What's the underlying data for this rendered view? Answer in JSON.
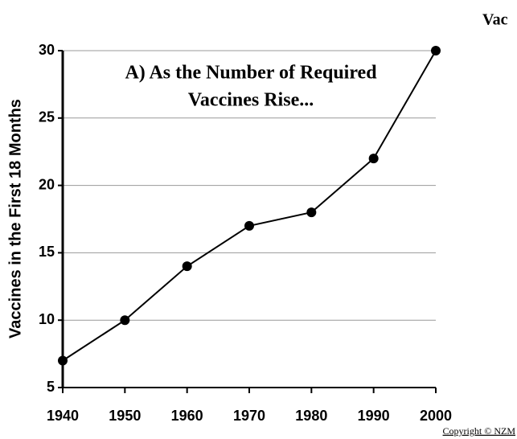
{
  "chart_data": {
    "type": "line",
    "title": [
      "A) As the Number of Required",
      "Vaccines Rise..."
    ],
    "y_label": "Vaccines in the First 18 Months",
    "annotations": [
      "Vac",
      "Copyright © NZM"
    ],
    "x": [
      1940,
      1950,
      1960,
      1970,
      1980,
      1990,
      2000
    ],
    "series": [
      {
        "name": "Vaccines",
        "color": "#000000",
        "values": [
          7,
          10,
          14,
          17,
          18,
          22,
          30
        ]
      }
    ],
    "xlim": [
      1940,
      2000
    ],
    "xticks": [
      1940,
      1950,
      1960,
      1970,
      1980,
      1990,
      2000
    ],
    "ylim": [
      5,
      30
    ],
    "yticks": [
      5,
      10,
      15,
      20,
      25,
      30
    ],
    "grid": true
  }
}
